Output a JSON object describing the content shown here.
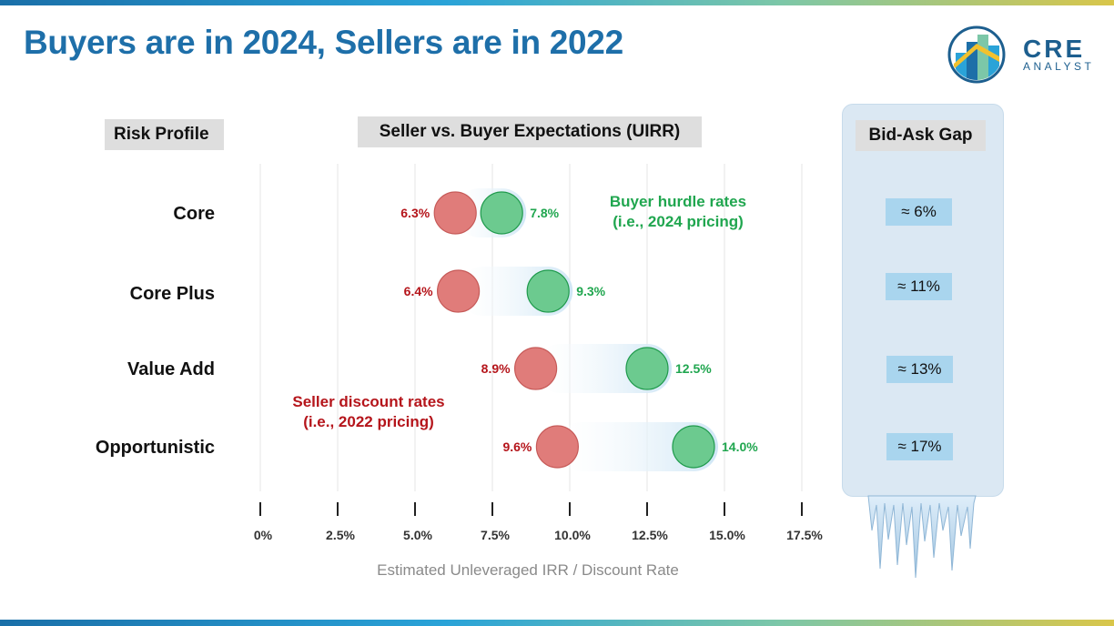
{
  "title": "Buyers are in 2024, Sellers are in 2022",
  "logo": {
    "main": "CRE",
    "sub": "ANALYST"
  },
  "headers": {
    "risk_profile": "Risk Profile",
    "expectations": "Seller vs. Buyer Expectations (UIRR)",
    "bid_ask_gap": "Bid-Ask Gap"
  },
  "annotations": {
    "buyer_line1": "Buyer hurdle rates",
    "buyer_line2": "(i.e., 2024 pricing)",
    "seller_line1": "Seller discount rates",
    "seller_line2": "(i.e., 2022 pricing)"
  },
  "colors": {
    "title": "#1e6fa9",
    "seller": "#b5151b",
    "seller_marker": "#e07c7a",
    "buyer": "#20a64f",
    "buyer_marker": "#6cca8f",
    "gap_box": "#a9d5ee"
  },
  "chart_data": {
    "type": "dumbbell",
    "xlabel": "Estimated Unleveraged IRR / Discount Rate",
    "xlim": [
      0,
      17.5
    ],
    "ticks": [
      "0%",
      "2.5%",
      "5.0%",
      "7.5%",
      "10.0%",
      "12.5%",
      "15.0%",
      "17.5%"
    ],
    "tick_values": [
      0,
      2.5,
      5.0,
      7.5,
      10.0,
      12.5,
      15.0,
      17.5
    ],
    "grid": true,
    "categories": [
      "Core",
      "Core Plus",
      "Value Add",
      "Opportunistic"
    ],
    "series": [
      {
        "name": "Seller discount rates",
        "values": [
          6.3,
          6.4,
          8.9,
          9.6
        ],
        "labels": [
          "6.3%",
          "6.4%",
          "8.9%",
          "9.6%"
        ]
      },
      {
        "name": "Buyer hurdle rates",
        "values": [
          7.8,
          9.3,
          12.5,
          14.0
        ],
        "labels": [
          "7.8%",
          "9.3%",
          "12.5%",
          "14.0%"
        ]
      }
    ],
    "gaps": [
      "≈ 6%",
      "≈ 11%",
      "≈ 13%",
      "≈ 17%"
    ]
  }
}
